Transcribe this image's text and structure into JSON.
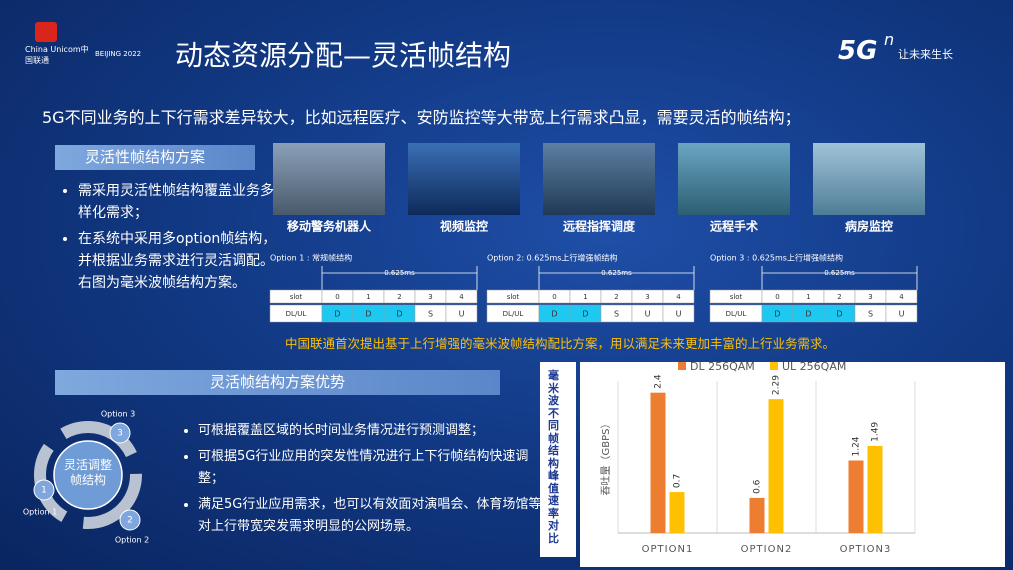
{
  "header": {
    "logo_text": "China Unicom中国联通",
    "olympic_text": "BEIJING 2022",
    "title": "动态资源分配—灵活帧结构",
    "brand": "5G",
    "brand_sup": "n",
    "slogan": "让未来生长"
  },
  "intro": "5G不同业务的上下行需求差异较大，比如远程医疗、安防监控等大带宽上行需求凸显，需要灵活的帧结构；",
  "section1": {
    "heading": "灵活性帧结构方案",
    "bullets": [
      "需采用灵活性帧结构覆盖业务多样化需求；",
      "在系统中采用多option帧结构，并根据业务需求进行灵活调配。右图为毫米波帧结构方案。"
    ]
  },
  "use_cases": [
    "移动警务机器人",
    "视频监控",
    "远程指挥调度",
    "远程手术",
    "病房监控"
  ],
  "frame_options": [
    {
      "label": "Option 1 : 常规帧结构",
      "duration": "0.625ms",
      "slot_label": "slot",
      "slots": [
        "0",
        "1",
        "2",
        "3",
        "4"
      ],
      "row_label": "DL/UL",
      "pattern": [
        "D",
        "D",
        "D",
        "S",
        "U"
      ]
    },
    {
      "label": "Option 2: 0.625ms上行增强帧结构",
      "duration": "0.625ms",
      "slot_label": "slot",
      "slots": [
        "0",
        "1",
        "2",
        "3",
        "4"
      ],
      "row_label": "DL/UL",
      "pattern": [
        "D",
        "D",
        "S",
        "U",
        "U"
      ]
    },
    {
      "label": "Option 3 : 0.625ms上行增强帧结构",
      "duration": "0.625ms",
      "slot_label": "slot",
      "slots": [
        "0",
        "1",
        "2",
        "3",
        "4"
      ],
      "row_label": "DL/UL",
      "pattern": [
        "D",
        "D",
        "D",
        "S",
        "U"
      ]
    }
  ],
  "note": "中国联通首次提出基于上行增强的毫米波帧结构配比方案，用以满足未来更加丰富的上行业务需求。",
  "section2": {
    "heading": "灵活帧结构方案优势",
    "bullets": [
      "可根据覆盖区域的长时间业务情况进行预测调整；",
      "可根据5G行业应用的突发性情况进行上下行帧结构快速调整；",
      "满足5G行业应用需求，也可以有效面对演唱会、体育场馆等对上行带宽突发需求明显的公网场景。"
    ]
  },
  "cycle": {
    "center": "灵活调整帧结构",
    "steps": [
      {
        "number": "1",
        "label": "Option 1"
      },
      {
        "number": "2",
        "label": "Option 2"
      },
      {
        "number": "3",
        "label": "Option 3"
      }
    ]
  },
  "chart_data": {
    "type": "bar",
    "side_title": "毫米波不同帧结构峰值速率对比",
    "y_label": "吞吐量（GBPS）",
    "categories": [
      "OPTION1",
      "OPTION2",
      "OPTION3"
    ],
    "series": [
      {
        "name": "DL 256QAM",
        "color": "#ed7d31",
        "values": [
          2.4,
          0.6,
          1.24
        ]
      },
      {
        "name": "UL 256QAM",
        "color": "#ffc000",
        "values": [
          0.7,
          2.29,
          1.49
        ]
      }
    ],
    "ylim": [
      0,
      2.6
    ],
    "legend": "top"
  }
}
